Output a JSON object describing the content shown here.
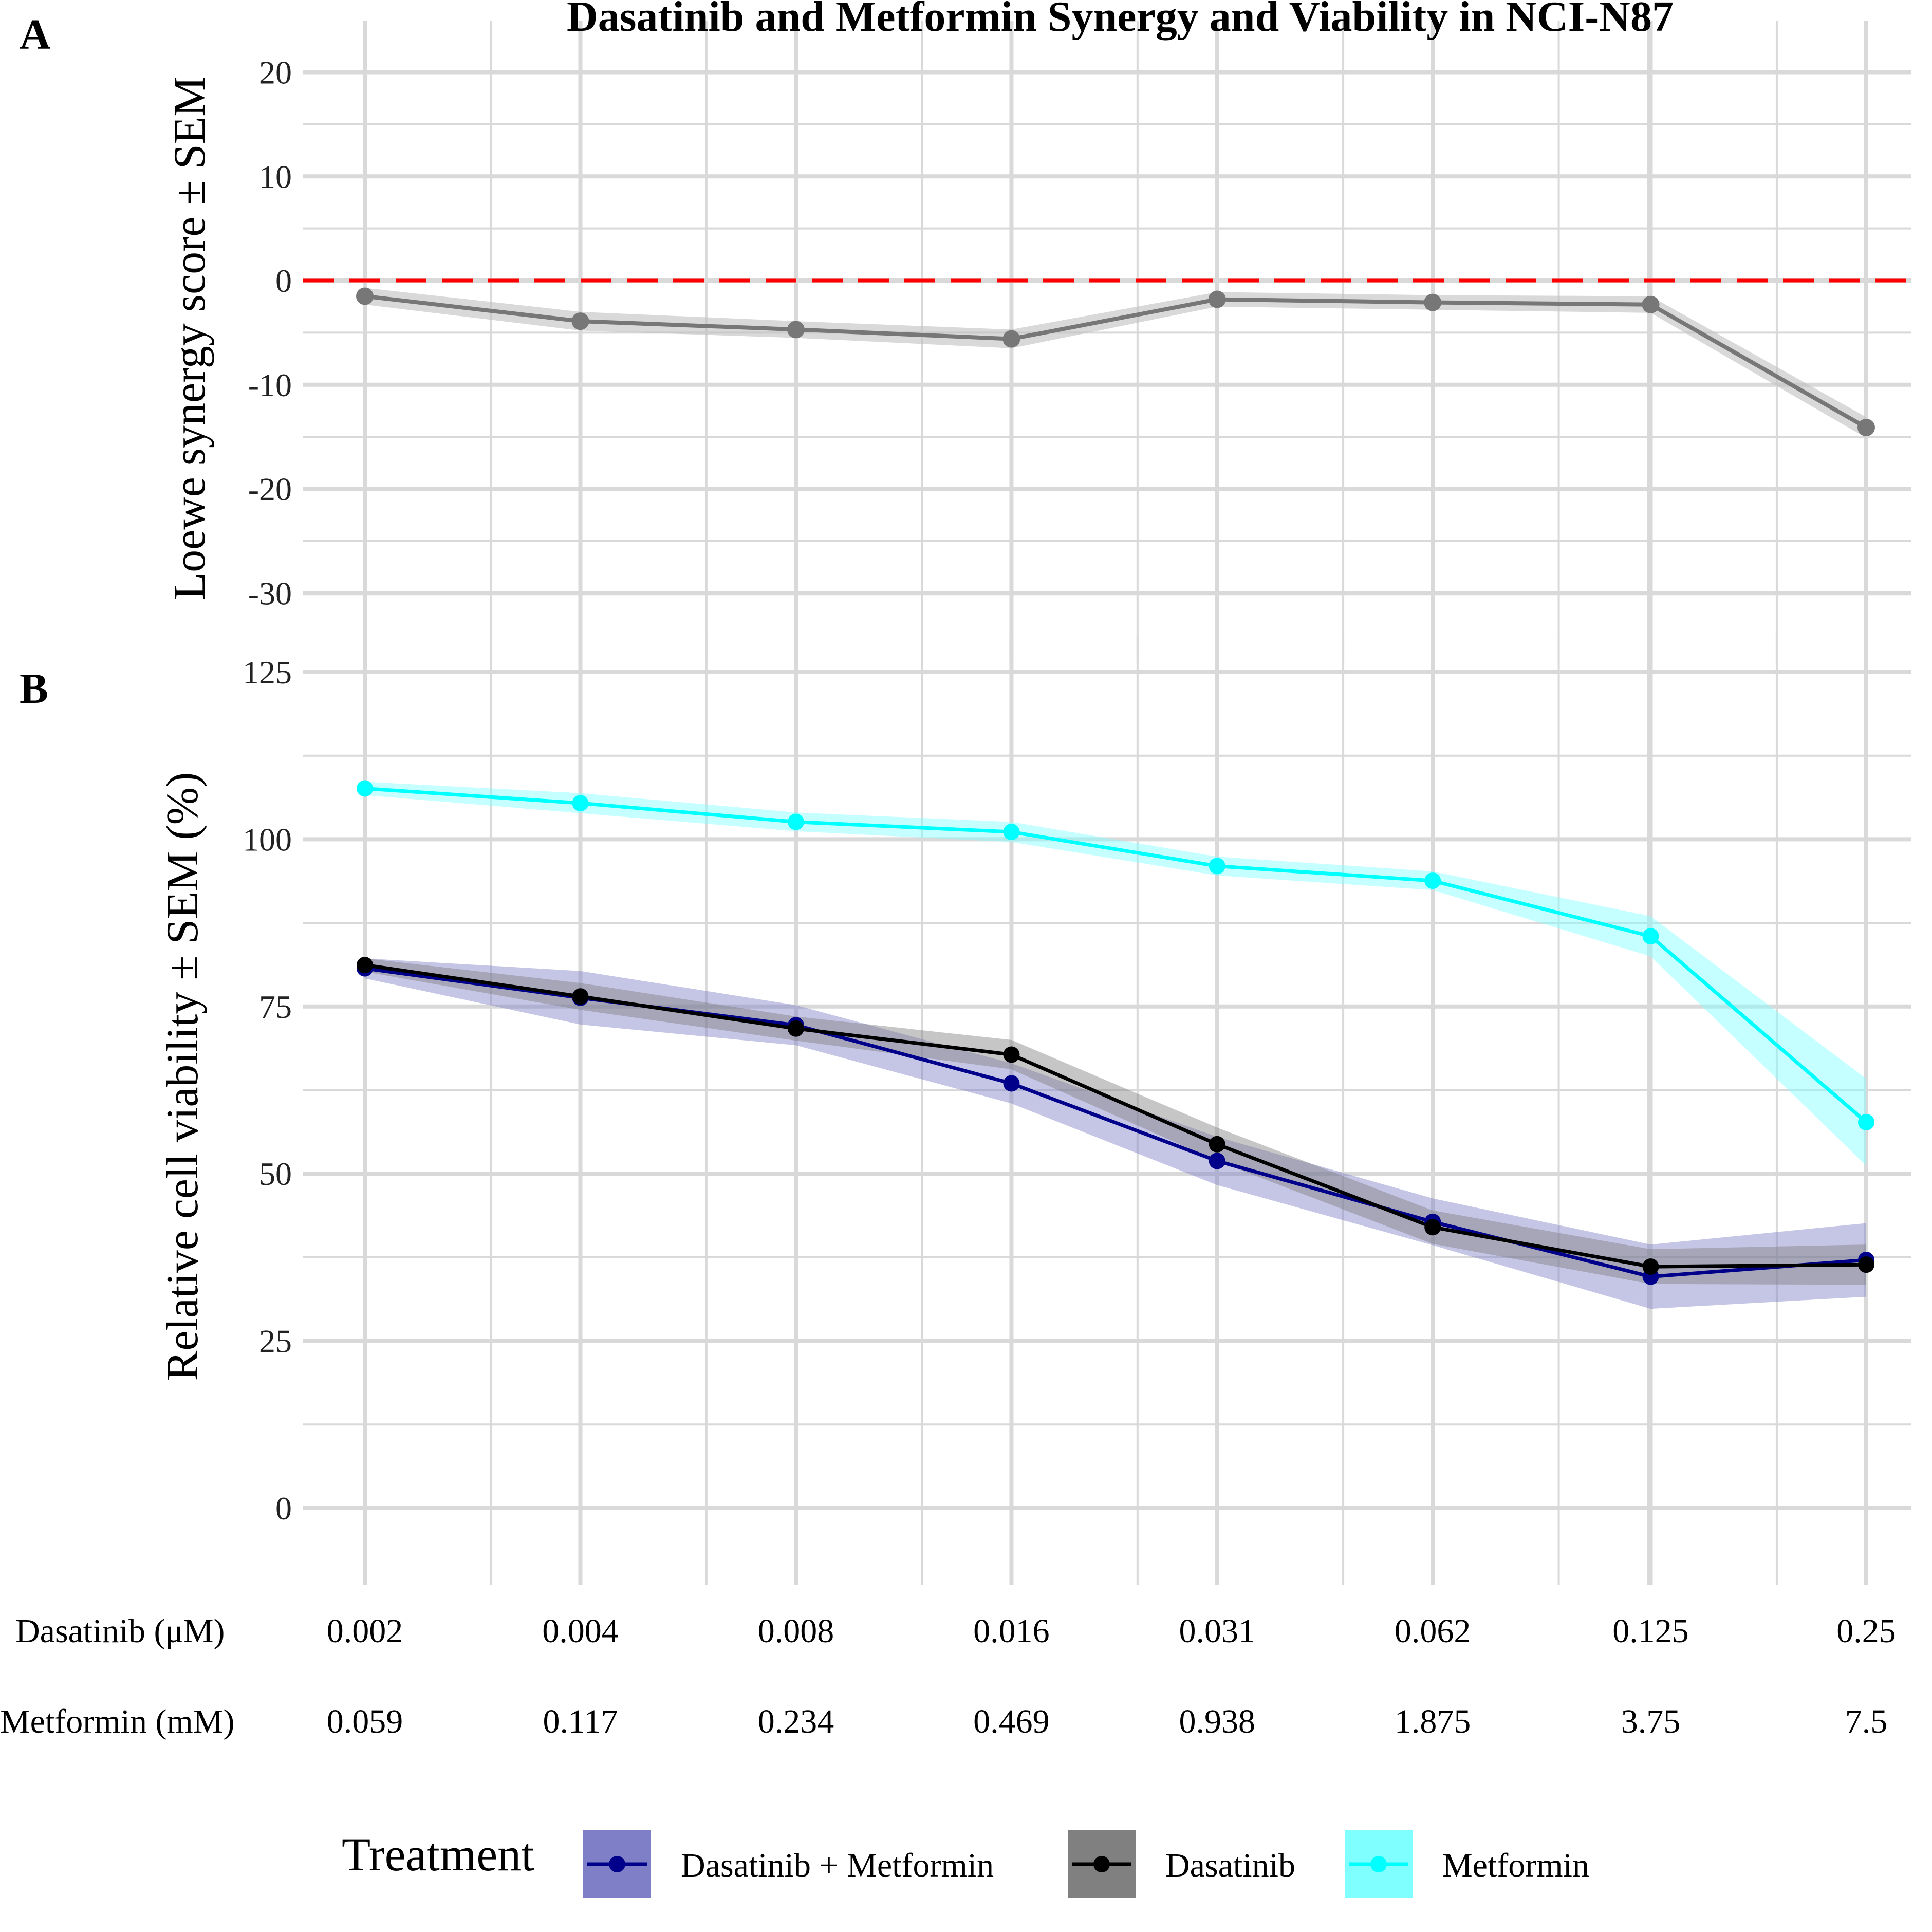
{
  "title": "Dasatinib and Metformin Synergy and Viability in NCI-N87",
  "colors": {
    "zero_line": "#ff0000",
    "synergy_line": "#777777",
    "synergy_band": "#bfbfbf",
    "grid": "#d9d9d9",
    "combo": "#00008b",
    "combo_band": "#7f7fc8",
    "dasatinib": "#000000",
    "dasatinib_band": "#808080",
    "metformin": "#00ffff",
    "metformin_band": "#7fffff"
  },
  "dose_rows": [
    {
      "label": "Dasatinib (μM)",
      "values": [
        "0.002",
        "0.004",
        "0.008",
        "0.016",
        "0.031",
        "0.062",
        "0.125",
        "0.25"
      ]
    },
    {
      "label": "Metformin (mM)",
      "values": [
        "0.059",
        "0.117",
        "0.234",
        "0.469",
        "0.938",
        "1.875",
        "3.75",
        "7.5"
      ]
    }
  ],
  "legend": {
    "title": "Treatment",
    "items": [
      {
        "label": "Dasatinib + Metformin",
        "line": "#00008b",
        "fill": "#7f7fc8"
      },
      {
        "label": "Dasatinib",
        "line": "#000000",
        "fill": "#808080"
      },
      {
        "label": "Metformin",
        "line": "#00ffff",
        "fill": "#7fffff"
      }
    ]
  },
  "chart_data": [
    {
      "panel": "A",
      "type": "line",
      "x": [
        0.002,
        0.004,
        0.008,
        0.016,
        0.031,
        0.062,
        0.125,
        0.25
      ],
      "x_scale": "log",
      "xlabel": "",
      "ylabel": "Loewe synergy score ± SEM",
      "ylim": [
        -32.5,
        22
      ],
      "y_ticks": [
        -30,
        -20,
        -10,
        0,
        10,
        20
      ],
      "grid": true,
      "reference_line": {
        "y": 0,
        "style": "dashed"
      },
      "series": [
        {
          "values": [
            -1.5,
            -3.9,
            -4.7,
            -5.6,
            -1.8,
            -2.1,
            -2.3,
            -14.1
          ],
          "sem": [
            0.8,
            0.9,
            0.8,
            0.9,
            0.7,
            0.7,
            0.8,
            1.0
          ]
        }
      ]
    },
    {
      "panel": "B",
      "type": "line",
      "x": [
        0.002,
        0.004,
        0.008,
        0.016,
        0.031,
        0.062,
        0.125,
        0.25
      ],
      "x_scale": "log",
      "xlabel": "",
      "ylabel": "Relative cell viability ± SEM (%)",
      "ylim": [
        -5,
        126
      ],
      "y_ticks": [
        0,
        25,
        50,
        75,
        100,
        125
      ],
      "grid": true,
      "legend_position": "bottom",
      "series": [
        {
          "name": "Dasatinib + Metformin",
          "values": [
            80.7,
            76.3,
            72.2,
            63.5,
            51.9,
            42.8,
            34.6,
            37.1
          ],
          "sem": [
            1.5,
            4.0,
            3.0,
            3.0,
            3.6,
            3.5,
            4.8,
            5.5
          ]
        },
        {
          "name": "Dasatinib",
          "values": [
            81.2,
            76.5,
            71.7,
            67.8,
            54.4,
            42.0,
            36.1,
            36.4
          ],
          "sem": [
            1.0,
            2.0,
            1.8,
            2.2,
            2.5,
            2.5,
            2.6,
            3.0
          ]
        },
        {
          "name": "Metformin",
          "values": [
            107.6,
            105.4,
            102.6,
            101.1,
            96.0,
            93.8,
            85.5,
            57.7
          ],
          "sem": [
            1.0,
            1.5,
            1.4,
            1.5,
            1.4,
            1.4,
            3.0,
            6.5
          ]
        }
      ]
    }
  ]
}
